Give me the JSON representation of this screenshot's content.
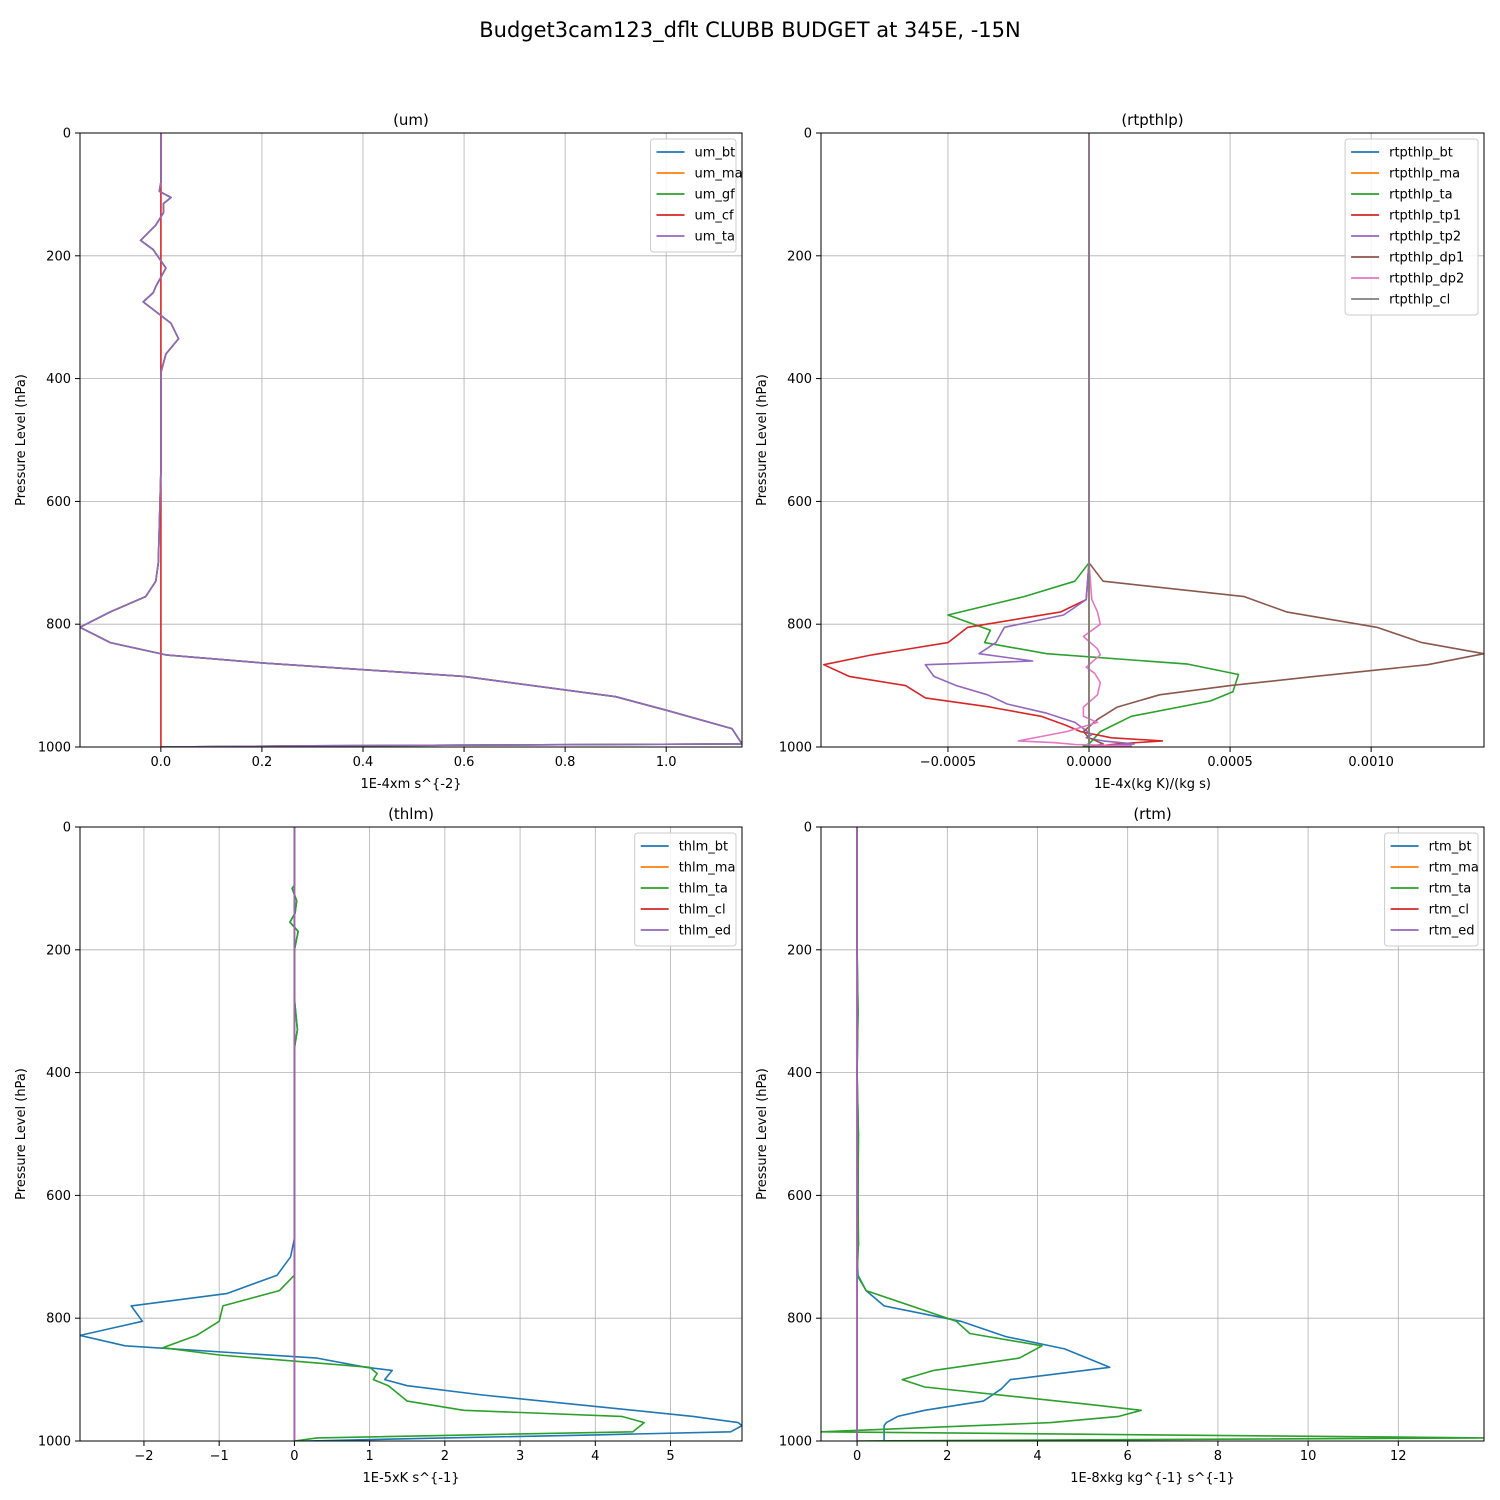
{
  "figure": {
    "title": "Budget3cam123_dflt CLUBB BUDGET at 345E, -15N"
  },
  "colors": {
    "C0": "#1f77b4",
    "C1": "#ff7f0e",
    "C2": "#2ca02c",
    "C3": "#d62728",
    "C4": "#9467bd",
    "C5": "#8c564b",
    "C6": "#e377c2",
    "C7": "#7f7f7f",
    "grid": "#b0b0b0"
  },
  "chart_data": [
    {
      "type": "line",
      "title": "(um)",
      "xlabel": "1E-4xm s^{-2}",
      "ylabel": "Pressure Level (hPa)",
      "xlim": [
        -0.16,
        1.15
      ],
      "ylim": [
        1000,
        0
      ],
      "xticks": [
        0.0,
        0.2,
        0.4,
        0.6,
        0.8,
        1.0
      ],
      "xtick_labels": [
        "0.0",
        "0.2",
        "0.4",
        "0.6",
        "0.8",
        "1.0"
      ],
      "yticks": [
        0,
        200,
        400,
        600,
        800,
        1000
      ],
      "grid": true,
      "legend": "top-right",
      "series": [
        {
          "name": "um_bt",
          "color": "C0",
          "x": [
            0,
            0,
            -0.003,
            0.02,
            0.005,
            0.005,
            -0.01,
            -0.04,
            -0.015,
            0.01,
            -0.01,
            -0.015,
            -0.035,
            0.02,
            0.035,
            0.01,
            0.0,
            0.0,
            0.0,
            -0.005,
            -0.01,
            -0.03,
            -0.1,
            -0.16,
            -0.1,
            0.01,
            0.2,
            0.6,
            0.9,
            1.0,
            1.13,
            1.15,
            0.3,
            0.0
          ],
          "y": [
            0,
            80,
            95,
            105,
            115,
            130,
            150,
            175,
            190,
            220,
            250,
            260,
            275,
            310,
            335,
            360,
            390,
            450,
            550,
            700,
            730,
            755,
            780,
            805,
            830,
            850,
            863,
            885,
            918,
            940,
            970,
            995,
            998,
            1000
          ]
        },
        {
          "name": "um_ma",
          "color": "C1",
          "x": [
            0,
            0,
            -0.003,
            0.02,
            0.005,
            0.005,
            -0.01,
            -0.04,
            -0.015,
            0.01,
            -0.01,
            -0.015,
            -0.035,
            0.02,
            0.035,
            0.01,
            0.0,
            0.0,
            0.0,
            -0.005,
            -0.01,
            -0.03,
            -0.1,
            -0.16,
            -0.1,
            0.01,
            0.2,
            0.6,
            0.9,
            1.0,
            1.13,
            1.15,
            0.3,
            0.0
          ],
          "y": [
            0,
            80,
            95,
            105,
            115,
            130,
            150,
            175,
            190,
            220,
            250,
            260,
            275,
            310,
            335,
            360,
            390,
            450,
            550,
            700,
            730,
            755,
            780,
            805,
            830,
            850,
            863,
            885,
            918,
            940,
            970,
            995,
            998,
            1000
          ]
        },
        {
          "name": "um_gf",
          "color": "C2",
          "x": [
            0,
            0,
            -0.003,
            0.02,
            0.005,
            0.005,
            -0.01,
            -0.04,
            -0.015,
            0.01,
            -0.01,
            -0.015,
            -0.035,
            0.02,
            0.035,
            0.01,
            0.0,
            0.0,
            0.0,
            -0.005,
            -0.01,
            -0.03,
            -0.1,
            -0.16,
            -0.1,
            0.01,
            0.2,
            0.6,
            0.9,
            1.0,
            1.13,
            1.15,
            0.3,
            0.0
          ],
          "y": [
            0,
            80,
            95,
            105,
            115,
            130,
            150,
            175,
            190,
            220,
            250,
            260,
            275,
            310,
            335,
            360,
            390,
            450,
            550,
            700,
            730,
            755,
            780,
            805,
            830,
            850,
            863,
            885,
            918,
            940,
            970,
            995,
            998,
            1000
          ]
        },
        {
          "name": "um_cf",
          "color": "C3",
          "x": [
            0,
            0
          ],
          "y": [
            0,
            1000
          ]
        },
        {
          "name": "um_ta",
          "color": "C4",
          "x": [
            0,
            0,
            -0.003,
            0.02,
            0.005,
            0.005,
            -0.01,
            -0.04,
            -0.015,
            0.01,
            -0.01,
            -0.015,
            -0.035,
            0.02,
            0.035,
            0.01,
            0.0,
            0.0,
            0.0,
            -0.005,
            -0.01,
            -0.03,
            -0.1,
            -0.16,
            -0.1,
            0.01,
            0.2,
            0.6,
            0.9,
            1.0,
            1.13,
            1.15,
            0.3,
            0.0
          ],
          "y": [
            0,
            80,
            95,
            105,
            115,
            130,
            150,
            175,
            190,
            220,
            250,
            260,
            275,
            310,
            335,
            360,
            390,
            450,
            550,
            700,
            730,
            755,
            780,
            805,
            830,
            850,
            863,
            885,
            918,
            940,
            970,
            995,
            998,
            1000
          ]
        }
      ]
    },
    {
      "type": "line",
      "title": "(rtpthlp)",
      "xlabel": "1E-4x(kg K)/(kg s)",
      "ylabel": "Pressure Level (hPa)",
      "xlim": [
        -0.00095,
        0.0014
      ],
      "ylim": [
        1000,
        0
      ],
      "xticks": [
        -0.0005,
        0.0,
        0.0005,
        0.001
      ],
      "xtick_labels": [
        "−0.0005",
        "0.0000",
        "0.0005",
        "0.0010"
      ],
      "yticks": [
        0,
        200,
        400,
        600,
        800,
        1000
      ],
      "grid": true,
      "legend": "top-right",
      "series": [
        {
          "name": "rtpthlp_bt",
          "color": "C0",
          "x": [
            0,
            0,
            0,
            0
          ],
          "y": [
            0,
            700,
            980,
            1000
          ]
        },
        {
          "name": "rtpthlp_ma",
          "color": "C1",
          "x": [
            0,
            0,
            0,
            0
          ],
          "y": [
            0,
            700,
            980,
            1000
          ]
        },
        {
          "name": "rtpthlp_ta",
          "color": "C2",
          "x": [
            0,
            0,
            -5e-05,
            -0.00023,
            -0.0005,
            -0.00035,
            -0.00037,
            -0.00015,
            0.00035,
            0.00053,
            0.00051,
            0.00043,
            0.00015,
            4e-05,
            1e-05,
            0,
            -2e-05,
            1e-05
          ],
          "y": [
            0,
            700,
            730,
            755,
            785,
            810,
            830,
            848,
            865,
            882,
            910,
            925,
            950,
            975,
            990,
            995,
            998,
            1000
          ]
        },
        {
          "name": "rtpthlp_tp1",
          "color": "C3",
          "x": [
            0,
            0,
            -1e-05,
            -0.0001,
            -0.00043,
            -0.0005,
            -0.00077,
            -0.00094,
            -0.00085,
            -0.00065,
            -0.00058,
            -0.00035,
            -0.00017,
            -8e-05,
            -3e-05,
            8e-05,
            0.00026,
            0.0001,
            0
          ],
          "y": [
            0,
            700,
            760,
            780,
            805,
            830,
            850,
            866,
            885,
            900,
            920,
            935,
            950,
            965,
            975,
            985,
            990,
            995,
            1000
          ]
        },
        {
          "name": "rtpthlp_tp2",
          "color": "C4",
          "x": [
            0,
            0,
            -1e-05,
            -9e-05,
            -0.0003,
            -0.00033,
            -0.00039,
            -0.0002,
            -0.00058,
            -0.00055,
            -0.00047,
            -0.00036,
            -0.00029,
            -0.00015,
            -5e-05,
            1e-05,
            -1e-05,
            5e-05,
            0.00016,
            5e-05,
            0
          ],
          "y": [
            0,
            700,
            760,
            785,
            805,
            830,
            848,
            860,
            866,
            885,
            900,
            915,
            930,
            945,
            960,
            980,
            985,
            990,
            995,
            998,
            1000
          ]
        },
        {
          "name": "rtpthlp_dp1",
          "color": "C5",
          "x": [
            0,
            0,
            5e-05,
            0.00055,
            0.0007,
            0.00102,
            0.00118,
            0.0014,
            0.0012,
            0.0008,
            0.0005,
            0.00025,
            0.0001,
            3e-05,
            -2e-05,
            0,
            5e-05,
            0
          ],
          "y": [
            0,
            700,
            730,
            755,
            780,
            805,
            830,
            848,
            866,
            885,
            900,
            915,
            935,
            955,
            975,
            985,
            995,
            1000
          ]
        },
        {
          "name": "rtpthlp_dp2",
          "color": "C6",
          "x": [
            0,
            0,
            1e-05,
            3e-05,
            4e-05,
            -2e-05,
            3e-05,
            4e-05,
            -1e-05,
            2e-05,
            4e-05,
            3e-05,
            -2e-05,
            -2e-05,
            3e-05,
            -8e-05,
            -0.00025,
            -0.00012,
            -5e-05,
            0.00015,
            0
          ],
          "y": [
            0,
            700,
            760,
            780,
            800,
            820,
            840,
            850,
            870,
            880,
            895,
            915,
            935,
            950,
            960,
            975,
            990,
            993,
            996,
            998,
            1000
          ]
        },
        {
          "name": "rtpthlp_cl",
          "color": "C7",
          "x": [
            0,
            0
          ],
          "y": [
            0,
            1000
          ]
        }
      ]
    },
    {
      "type": "line",
      "title": "(thlm)",
      "xlabel": "1E-5xK s^{-1}",
      "ylabel": "Pressure Level (hPa)",
      "xlim": [
        -2.85,
        5.95
      ],
      "ylim": [
        1000,
        0
      ],
      "xticks": [
        -2,
        -1,
        0,
        1,
        2,
        3,
        4,
        5
      ],
      "xtick_labels": [
        "−2",
        "−1",
        "0",
        "1",
        "2",
        "3",
        "4",
        "5"
      ],
      "yticks": [
        0,
        200,
        400,
        600,
        800,
        1000
      ],
      "grid": true,
      "legend": "top-right",
      "series": [
        {
          "name": "thlm_bt",
          "color": "C0",
          "x": [
            0,
            0,
            -0.03,
            0.03,
            0.01,
            -0.06,
            0.05,
            0.0,
            0.0,
            0.04,
            0.0,
            0.0,
            0.0,
            0.0,
            0.0,
            -0.05,
            -0.23,
            -0.9,
            -2.17,
            -2.02,
            -2.85,
            -2.25,
            0.3,
            0.95,
            1.3,
            1.2,
            1.5,
            2.5,
            4.1,
            5.3,
            5.9,
            5.95,
            5.8,
            4.0,
            2.0,
            0.15
          ],
          "y": [
            0,
            95,
            100,
            120,
            140,
            155,
            170,
            200,
            280,
            330,
            360,
            400,
            500,
            600,
            670,
            700,
            730,
            760,
            780,
            805,
            828,
            845,
            865,
            880,
            885,
            900,
            910,
            925,
            945,
            960,
            970,
            975,
            985,
            990,
            995,
            1000
          ]
        },
        {
          "name": "thlm_ma",
          "color": "C1",
          "x": [
            0,
            0
          ],
          "y": [
            0,
            1000
          ]
        },
        {
          "name": "thlm_ta",
          "color": "C2",
          "x": [
            0,
            0,
            -0.03,
            0.03,
            0.01,
            -0.06,
            0.05,
            0.0,
            0.0,
            0.04,
            0.0,
            0.0,
            0.0,
            0.0,
            0.0,
            0.0,
            -0.2,
            -0.95,
            -1.0,
            -1.3,
            -1.75,
            -1.0,
            1.0,
            1.1,
            1.05,
            1.25,
            1.5,
            2.25,
            4.35,
            4.65,
            4.5,
            0.3,
            0.0
          ],
          "y": [
            0,
            95,
            100,
            120,
            140,
            155,
            170,
            200,
            280,
            330,
            360,
            400,
            500,
            600,
            670,
            730,
            755,
            780,
            805,
            828,
            848,
            860,
            880,
            890,
            900,
            910,
            935,
            950,
            960,
            970,
            985,
            995,
            1000
          ]
        },
        {
          "name": "thlm_cl",
          "color": "C3",
          "x": [
            0,
            0
          ],
          "y": [
            0,
            1000
          ]
        },
        {
          "name": "thlm_ed",
          "color": "C4",
          "x": [
            0,
            0
          ],
          "y": [
            0,
            1000
          ]
        }
      ]
    },
    {
      "type": "line",
      "title": "(rtm)",
      "xlabel": "1E-8xkg kg^{-1} s^{-1}",
      "ylabel": "Pressure Level (hPa)",
      "xlim": [
        -0.8,
        13.9
      ],
      "ylim": [
        1000,
        0
      ],
      "xticks": [
        0,
        2,
        4,
        6,
        8,
        10,
        12
      ],
      "xtick_labels": [
        "0",
        "2",
        "4",
        "6",
        "8",
        "10",
        "12"
      ],
      "yticks": [
        0,
        200,
        400,
        600,
        800,
        1000
      ],
      "grid": true,
      "legend": "top-right",
      "series": [
        {
          "name": "rtm_bt",
          "color": "C0",
          "x": [
            0,
            0,
            0.02,
            0,
            0.03,
            0.02,
            0.03,
            0,
            0.02,
            0.2,
            0.6,
            2.3,
            3.3,
            4.6,
            5.6,
            3.4,
            3.2,
            2.8,
            1.5,
            0.9,
            0.65,
            0.6,
            0.6
          ],
          "y": [
            0,
            200,
            300,
            400,
            500,
            600,
            680,
            700,
            730,
            755,
            780,
            805,
            830,
            850,
            880,
            900,
            915,
            935,
            950,
            960,
            970,
            975,
            1000
          ]
        },
        {
          "name": "rtm_ma",
          "color": "C1",
          "x": [
            0,
            0
          ],
          "y": [
            0,
            1000
          ]
        },
        {
          "name": "rtm_ta",
          "color": "C2",
          "x": [
            0,
            0,
            0.02,
            0,
            0.03,
            0.02,
            0.03,
            0,
            0.2,
            2.2,
            2.5,
            4.1,
            3.6,
            1.7,
            1.0,
            1.5,
            5.1,
            6.3,
            5.8,
            4.3,
            -0.8,
            13.9,
            0.0
          ],
          "y": [
            0,
            200,
            300,
            400,
            500,
            600,
            680,
            730,
            755,
            805,
            825,
            845,
            865,
            885,
            900,
            912,
            940,
            950,
            960,
            970,
            985,
            995,
            1000
          ]
        },
        {
          "name": "rtm_cl",
          "color": "C3",
          "x": [
            0,
            0
          ],
          "y": [
            0,
            1000
          ]
        },
        {
          "name": "rtm_ed",
          "color": "C4",
          "x": [
            0,
            0
          ],
          "y": [
            0,
            1000
          ]
        }
      ]
    }
  ]
}
